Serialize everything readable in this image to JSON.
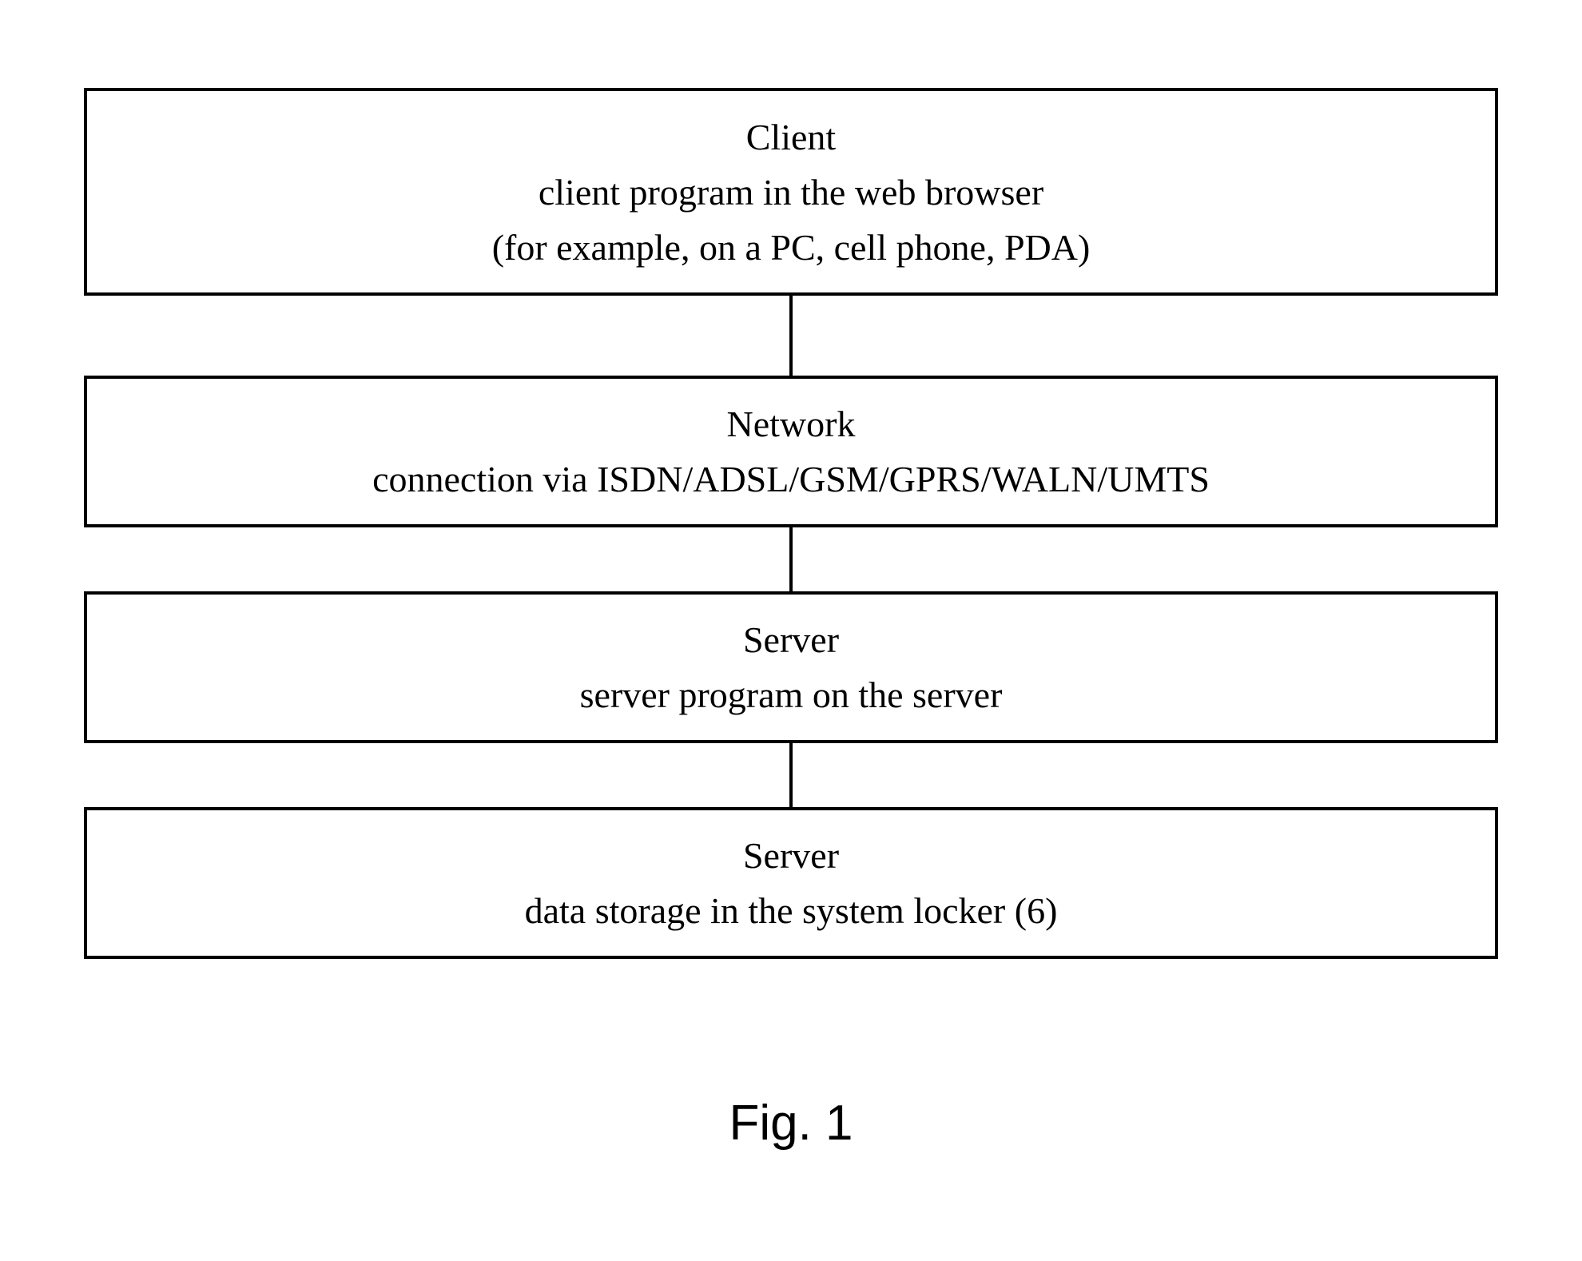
{
  "diagram": {
    "type": "flowchart",
    "direction": "vertical",
    "background_color": "#ffffff",
    "border_color": "#000000",
    "border_width": 4,
    "connector_color": "#000000",
    "connector_width": 4,
    "font_family_body": "Times New Roman",
    "font_family_label": "Arial",
    "font_size_body": 46,
    "font_size_label": 62,
    "boxes": [
      {
        "id": "client",
        "title": "Client",
        "lines": [
          "client program in the web browser",
          "(for example, on a PC, cell phone, PDA)"
        ]
      },
      {
        "id": "network",
        "title": "Network",
        "lines": [
          "connection via ISDN/ADSL/GSM/GPRS/WALN/UMTS"
        ]
      },
      {
        "id": "server1",
        "title": "Server",
        "lines": [
          "server program on the server"
        ]
      },
      {
        "id": "server2",
        "title": "Server",
        "lines": [
          "data storage in the system locker (6)"
        ]
      }
    ],
    "figure_label": "Fig. 1"
  }
}
